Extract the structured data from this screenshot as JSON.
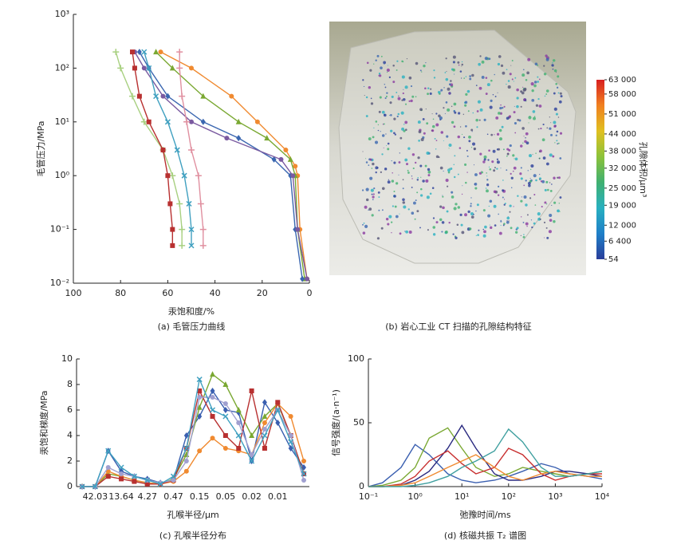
{
  "chart_data": [
    {
      "type": "line",
      "caption": "(a) 毛管压力曲线",
      "xlabel": "汞饱和度/%",
      "ylabel": "毛管压力/MPa",
      "xlim": [
        100,
        0
      ],
      "xticks": [
        100,
        80,
        60,
        40,
        20,
        0
      ],
      "ylim": [
        0.01,
        1000
      ],
      "ylog": true,
      "yticks": [
        {
          "value": 0.01,
          "label": "10⁻²"
        },
        {
          "value": 0.1,
          "label": "10⁻¹"
        },
        {
          "value": 1,
          "label": "10⁰"
        },
        {
          "value": 10,
          "label": "10¹"
        },
        {
          "value": 100,
          "label": "10²"
        },
        {
          "value": 1000,
          "label": "10³"
        }
      ],
      "series": [
        {
          "color": "#f08a30",
          "marker": "circle",
          "x": [
            1,
            4,
            5,
            6,
            10,
            22,
            33,
            50,
            63
          ],
          "values": [
            0.012,
            0.1,
            1,
            1.5,
            3,
            10,
            30,
            100,
            200
          ]
        },
        {
          "color": "#7aa832",
          "marker": "triangle",
          "x": [
            2,
            5,
            6,
            8,
            18,
            30,
            45,
            58,
            65
          ],
          "values": [
            0.012,
            0.1,
            1,
            2,
            5,
            10,
            30,
            100,
            200
          ]
        },
        {
          "color": "#3a66b0",
          "marker": "diamond",
          "x": [
            3,
            6,
            8,
            15,
            30,
            45,
            60,
            68,
            72
          ],
          "values": [
            0.012,
            0.1,
            1,
            2,
            5,
            10,
            30,
            100,
            200
          ]
        },
        {
          "color": "#7a5aa0",
          "marker": "circle",
          "x": [
            1,
            5,
            7,
            12,
            35,
            50,
            62,
            70,
            74
          ],
          "values": [
            0.012,
            0.1,
            1,
            2,
            5,
            10,
            30,
            100,
            200
          ]
        },
        {
          "color": "#a8d080",
          "marker": "plus",
          "x": [
            82,
            80,
            75,
            70,
            62,
            58,
            55,
            54,
            54
          ],
          "values": [
            200,
            100,
            30,
            10,
            3,
            1,
            0.3,
            0.1,
            0.05
          ]
        },
        {
          "color": "#b83030",
          "marker": "square",
          "x": [
            75,
            74,
            72,
            68,
            62,
            60,
            59,
            58,
            58
          ],
          "values": [
            200,
            100,
            30,
            10,
            3,
            1,
            0.3,
            0.1,
            0.05
          ]
        },
        {
          "color": "#e090a0",
          "marker": "plus",
          "x": [
            55,
            55,
            54,
            52,
            50,
            47,
            46,
            45,
            45
          ],
          "values": [
            200,
            100,
            30,
            10,
            3,
            1,
            0.3,
            0.1,
            0.05
          ]
        },
        {
          "color": "#40a0c0",
          "marker": "cross",
          "x": [
            70,
            68,
            65,
            60,
            56,
            53,
            51,
            50,
            50
          ],
          "values": [
            200,
            100,
            30,
            10,
            3,
            1,
            0.3,
            0.1,
            0.05
          ]
        }
      ]
    },
    {
      "type": "image",
      "caption": "(b) 岩心工业 CT 扫描的孔隙结构特征",
      "colorbar": {
        "label": "孔隙体积/μm³",
        "lim": [
          54,
          63000
        ],
        "colors": [
          "#2a3e9a",
          "#1f7fc8",
          "#28b0c0",
          "#40b070",
          "#8cc23a",
          "#e0c020",
          "#f08020",
          "#d82020"
        ],
        "ticks": [
          54,
          {
            "value": 6400,
            "label": "6 400"
          },
          {
            "value": 12000,
            "label": "12 000"
          },
          {
            "value": 19000,
            "label": "19 000"
          },
          {
            "value": 25000,
            "label": "25 000"
          },
          {
            "value": 32000,
            "label": "32 000"
          },
          {
            "value": 38000,
            "label": "38 000"
          },
          {
            "value": 44000,
            "label": "44 000"
          },
          {
            "value": 51000,
            "label": "51 000"
          },
          {
            "value": 58000,
            "label": "58 000"
          },
          {
            "value": 63000,
            "label": "63 000"
          }
        ]
      }
    },
    {
      "type": "category-line",
      "caption": "(c) 孔喉半径分布",
      "xlabel": "孔喉半径/μm",
      "ylabel": "汞饱和梯度/MPa",
      "categories": [
        null,
        "42.03",
        null,
        "13.64",
        null,
        "4.27",
        null,
        "0.47",
        null,
        "0.15",
        null,
        "0.05",
        null,
        "0.02",
        null,
        "0.01",
        null,
        null
      ],
      "ylim": [
        0,
        10
      ],
      "yticks": [
        0,
        2,
        4,
        6,
        8,
        10
      ],
      "series": [
        {
          "color": "#3a5fb0",
          "marker": "diamond",
          "values": [
            0,
            0,
            2.8,
            1.2,
            0.8,
            0.6,
            0.3,
            0.5,
            4,
            5.5,
            7.5,
            6,
            5.8,
            2,
            6.6,
            5,
            3,
            1.5
          ]
        },
        {
          "color": "#7aa832",
          "marker": "triangle",
          "values": [
            0,
            0,
            1,
            0.8,
            0.5,
            0.3,
            0.2,
            0.6,
            2.5,
            6.2,
            8.8,
            8,
            6,
            4,
            5.5,
            6.5,
            4,
            1
          ]
        },
        {
          "color": "#f08a30",
          "marker": "circle",
          "values": [
            0,
            0,
            1.2,
            0.8,
            0.5,
            0.3,
            0.2,
            0.4,
            1.2,
            2.8,
            3.8,
            3,
            2.8,
            2.5,
            5,
            6.5,
            5.5,
            2
          ]
        },
        {
          "color": "#b83030",
          "marker": "square",
          "values": [
            0,
            0,
            0.8,
            0.6,
            0.4,
            0.2,
            0.2,
            0.5,
            3,
            7.5,
            5.5,
            4,
            3,
            7.5,
            3,
            6.6,
            4,
            1
          ]
        },
        {
          "color": "#a0a0d0",
          "marker": "circle",
          "values": [
            0,
            0,
            1.5,
            1,
            0.8,
            0.5,
            0.3,
            0.5,
            2,
            7,
            7,
            6.5,
            5,
            2.5,
            4.5,
            6,
            4,
            0.5
          ]
        },
        {
          "color": "#40a0c0",
          "marker": "cross",
          "values": [
            0,
            0,
            2.8,
            1.5,
            0.8,
            0.5,
            0.2,
            0.8,
            3,
            8.4,
            6,
            5.5,
            4,
            2,
            4,
            6,
            3.5,
            1
          ]
        }
      ]
    },
    {
      "type": "line",
      "caption": "(d) 核磁共振 T₂ 谱图",
      "xlabel": "弛豫时间/ms",
      "ylabel": "信号强度/(a·n⁻¹)",
      "xlim": [
        0.1,
        10000
      ],
      "xlog": true,
      "xticks": [
        {
          "value": 0.1,
          "label": "10⁻¹"
        },
        {
          "value": 1,
          "label": "10⁰"
        },
        {
          "value": 10,
          "label": "10¹"
        },
        {
          "value": 100,
          "label": "10²"
        },
        {
          "value": 1000,
          "label": "10³"
        },
        {
          "value": 10000,
          "label": "10⁴"
        }
      ],
      "ylim": [
        0,
        100
      ],
      "yticks": [
        0,
        50,
        100
      ],
      "series": [
        {
          "color": "#3a5fb0",
          "x": [
            0.1,
            0.2,
            0.5,
            1,
            2,
            5,
            10,
            20,
            50,
            100,
            200,
            500,
            1000,
            2000,
            5000,
            10000
          ],
          "values": [
            0,
            3,
            15,
            33,
            25,
            10,
            5,
            3,
            5,
            8,
            12,
            18,
            15,
            10,
            8,
            6
          ]
        },
        {
          "color": "#7aa832",
          "x": [
            0.1,
            0.2,
            0.5,
            1,
            2,
            5,
            10,
            20,
            50,
            100,
            200,
            500,
            1000,
            2000,
            5000,
            10000
          ],
          "values": [
            0,
            1,
            5,
            15,
            38,
            46,
            30,
            15,
            8,
            10,
            15,
            12,
            10,
            8,
            10,
            12
          ]
        },
        {
          "color": "#2a2a80",
          "x": [
            0.1,
            0.2,
            0.5,
            1,
            2,
            5,
            10,
            20,
            50,
            100,
            200,
            500,
            1000,
            2000,
            5000,
            10000
          ],
          "values": [
            0,
            0,
            1,
            5,
            12,
            30,
            48,
            30,
            10,
            5,
            5,
            8,
            12,
            12,
            10,
            8
          ]
        },
        {
          "color": "#c83030",
          "x": [
            0.1,
            0.2,
            0.5,
            1,
            2,
            5,
            10,
            20,
            50,
            100,
            200,
            500,
            1000,
            2000,
            5000,
            10000
          ],
          "values": [
            0,
            0,
            2,
            8,
            20,
            28,
            18,
            10,
            15,
            30,
            25,
            10,
            5,
            8,
            10,
            10
          ]
        },
        {
          "color": "#f08a30",
          "x": [
            0.1,
            0.2,
            0.5,
            1,
            2,
            5,
            10,
            20,
            50,
            100,
            200,
            500,
            1000,
            2000,
            5000,
            10000
          ],
          "values": [
            0,
            0,
            1,
            3,
            8,
            15,
            20,
            25,
            15,
            8,
            5,
            10,
            12,
            10,
            8,
            8
          ]
        },
        {
          "color": "#40a0a0",
          "x": [
            0.1,
            0.2,
            0.5,
            1,
            2,
            5,
            10,
            20,
            50,
            100,
            200,
            500,
            1000,
            2000,
            5000,
            10000
          ],
          "values": [
            0,
            0,
            0,
            1,
            3,
            8,
            15,
            20,
            28,
            45,
            35,
            15,
            8,
            8,
            10,
            12
          ]
        }
      ]
    }
  ]
}
